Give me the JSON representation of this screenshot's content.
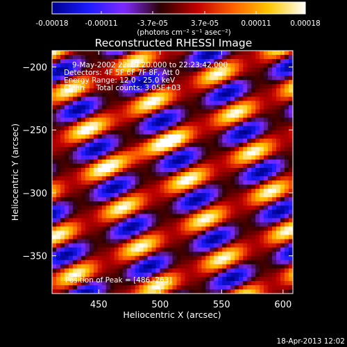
{
  "chart_data": {
    "type": "heatmap",
    "title": "Reconstructed RHESSI Image",
    "xlabel": "Heliocentric X (arcsec)",
    "ylabel": "Heliocentric Y (arcsec)",
    "xlim": [
      412,
      608
    ],
    "ylim": [
      -380,
      -187
    ],
    "x_ticks": [
      450,
      500,
      550,
      600
    ],
    "y_ticks": [
      -200,
      -250,
      -300,
      -350
    ],
    "colorbar": {
      "range": [
        -0.00018,
        0.00018
      ],
      "tick_values": [
        -0.00018,
        -0.00011,
        -3.7e-05,
        3.7e-05,
        0.00011,
        0.00018
      ],
      "tick_labels": [
        "-0.00018",
        "-0.00011",
        "-3.7e-05",
        "3.7e-05",
        "0.00011",
        "0.00018"
      ],
      "unit_label": "(photons cm⁻² s⁻¹ asec⁻²)",
      "colormap": [
        "#00008c",
        "#1b1bff",
        "#7f2aff",
        "#2a0000",
        "#c00000",
        "#ff6000",
        "#ffc800",
        "#ffffff"
      ]
    },
    "annotations": [
      "9-May-2002 22:19:20.000 to 22:23:42.000",
      "Detectors: 4F 5F 6F 7F 8F, Att 0",
      "Energy Range: 12.0 - 25.0 keV",
      "Clean     Total counts: 3.05E+03"
    ],
    "peak_label": "Position of Peak = [486,-263]",
    "peak": [
      486,
      -263
    ],
    "stripe_pattern": {
      "orientation": "diagonal, rising to the right",
      "description": "alternating bright (yellow/white) and dark (blue) fringes"
    }
  },
  "timestamp": "18-Apr-2013 12:02"
}
